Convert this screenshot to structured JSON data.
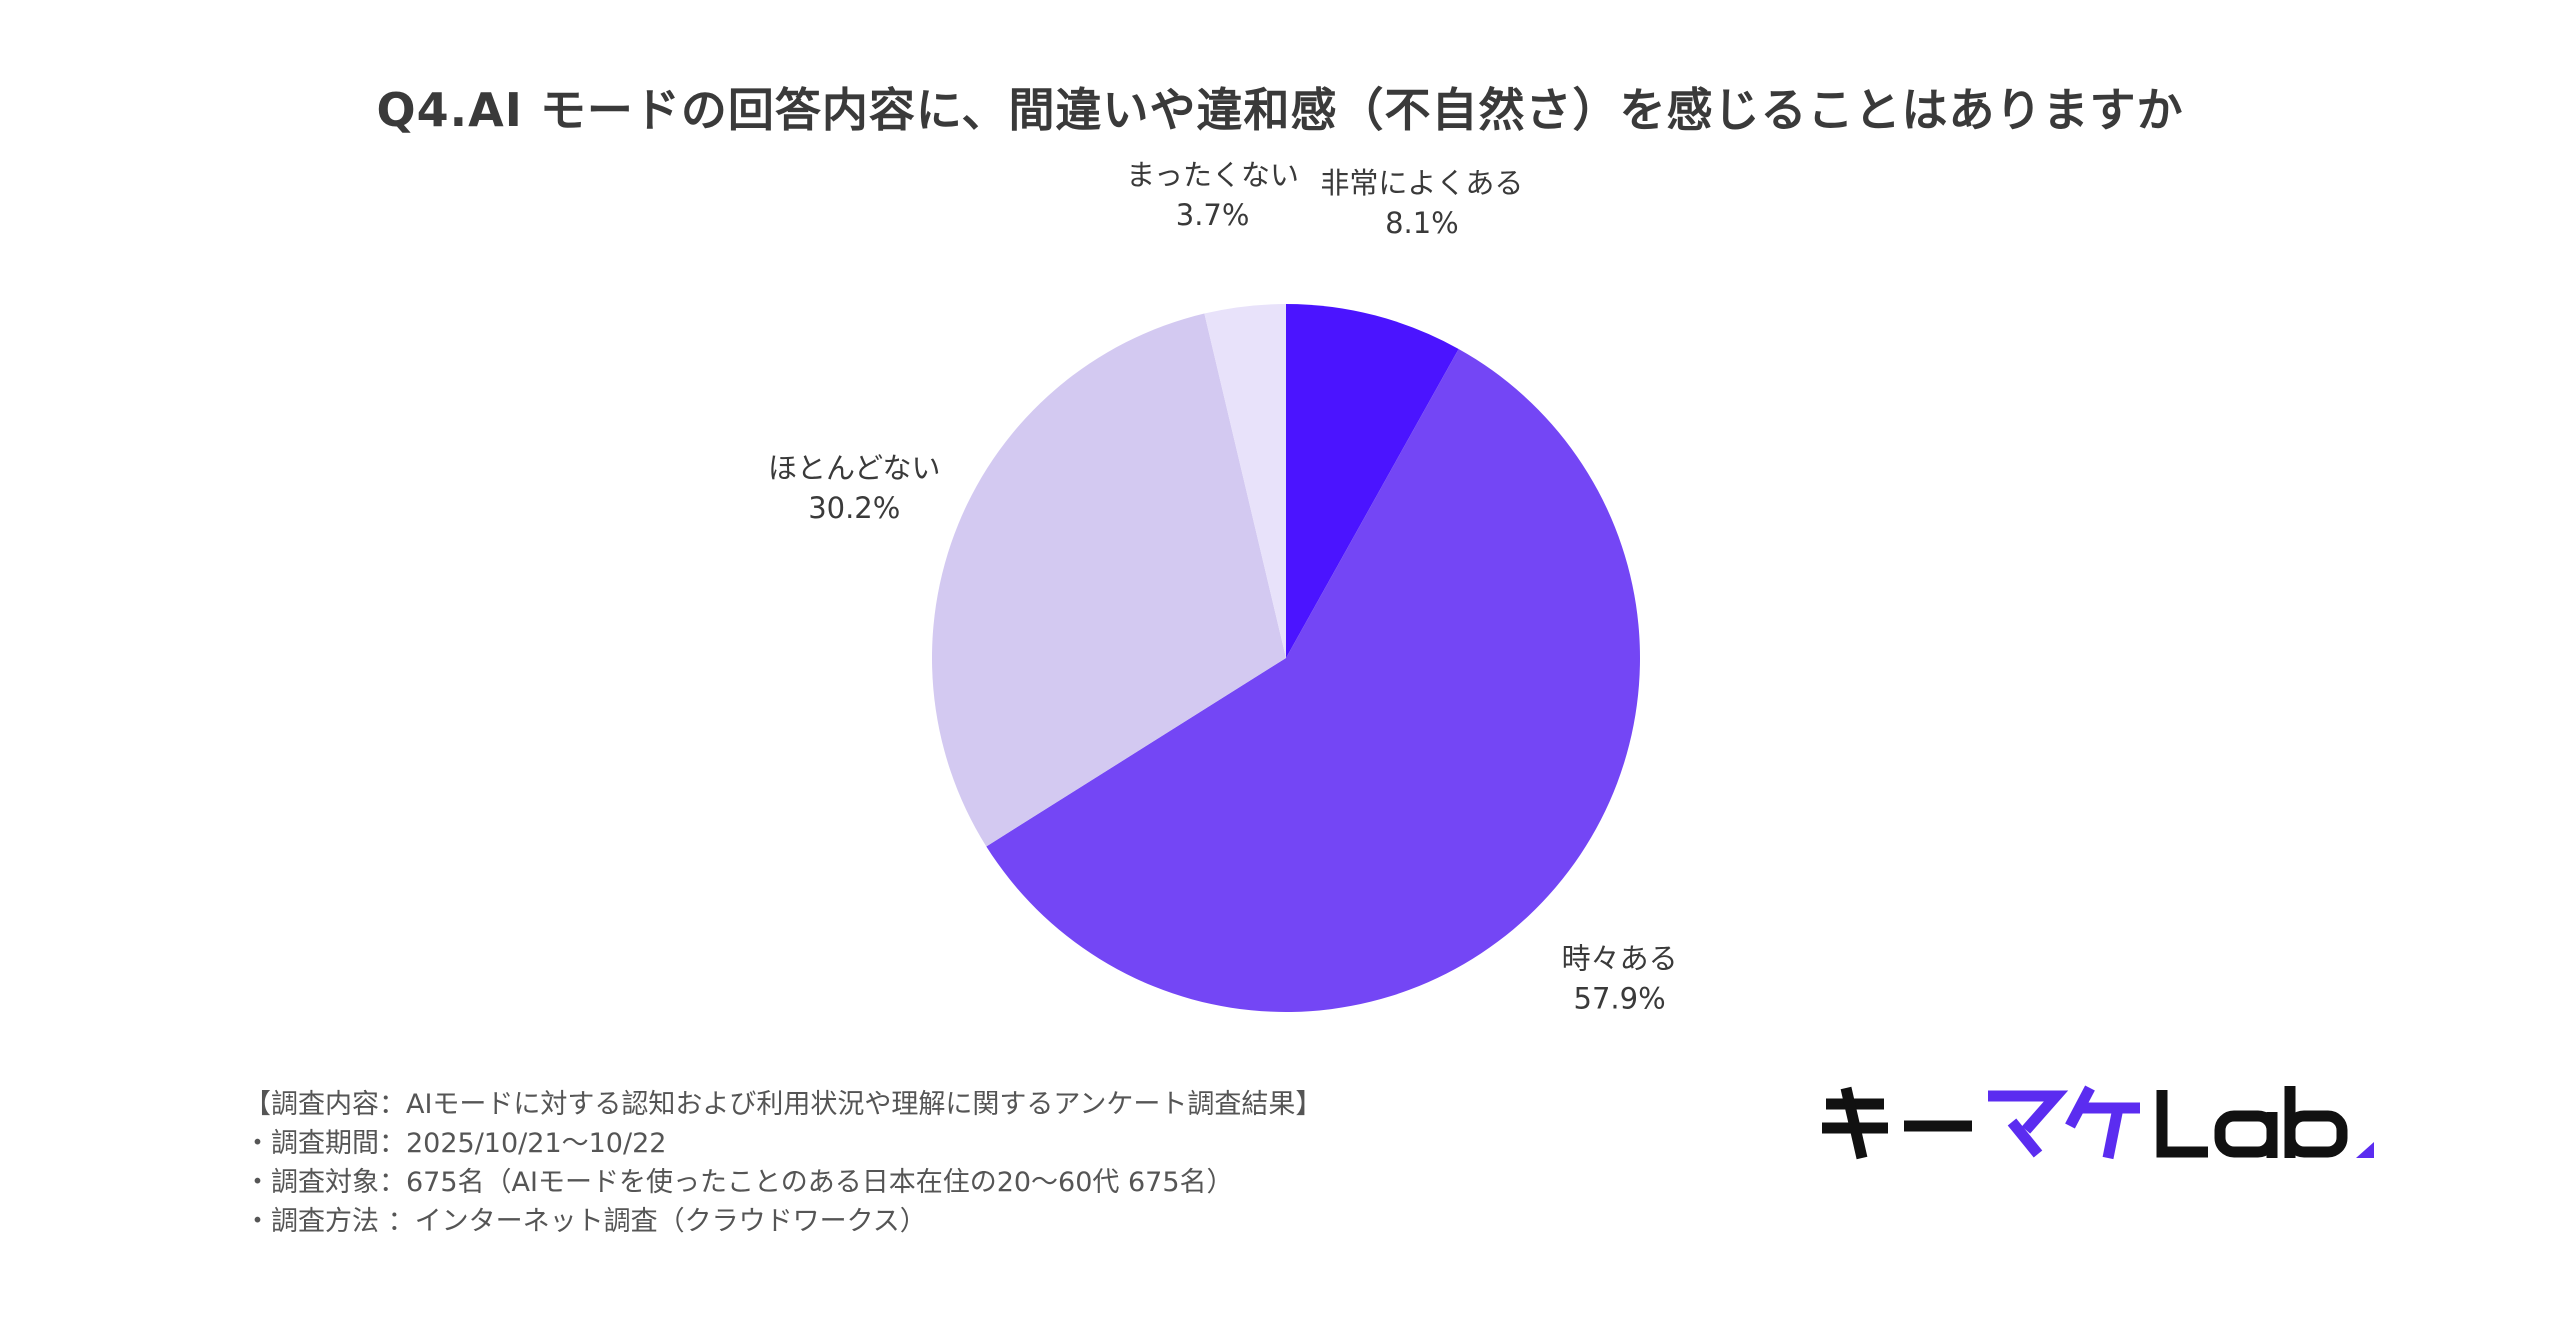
{
  "chart_data": {
    "type": "pie",
    "title": "Q4.AI モードの回答内容に、間違いや違和感（不自然さ）を感じることはありますか",
    "slices": [
      {
        "name": "非常によくある",
        "value": 8.1,
        "label": "8.1%",
        "color": "#4b14ff"
      },
      {
        "name": "時々ある",
        "value": 57.9,
        "label": "57.9%",
        "color": "#7446f5"
      },
      {
        "name": "ほとんどない",
        "value": 30.2,
        "label": "30.2%",
        "color": "#d3c9f1"
      },
      {
        "name": "まったくない",
        "value": 3.7,
        "label": "3.7%",
        "color": "#e8e2fa"
      }
    ],
    "start_angle": "12 o'clock",
    "direction": "clockwise",
    "legend": "none"
  },
  "footnotes": {
    "line1": "【調査内容：AIモードに対する認知および利用状況や理解に関するアンケート調査結果】",
    "line2": "・調査期間：2025/10/21〜10/22",
    "line3": "・調査対象：675名（AIモードを使ったことのある日本在住の20〜60代 675名）",
    "line4": "・調査方法 ：インターネット調査（クラウドワークス）"
  },
  "logo": {
    "text": "キーマケLab.",
    "dark_color": "#111111",
    "accent_color": "#5b2cf0"
  }
}
